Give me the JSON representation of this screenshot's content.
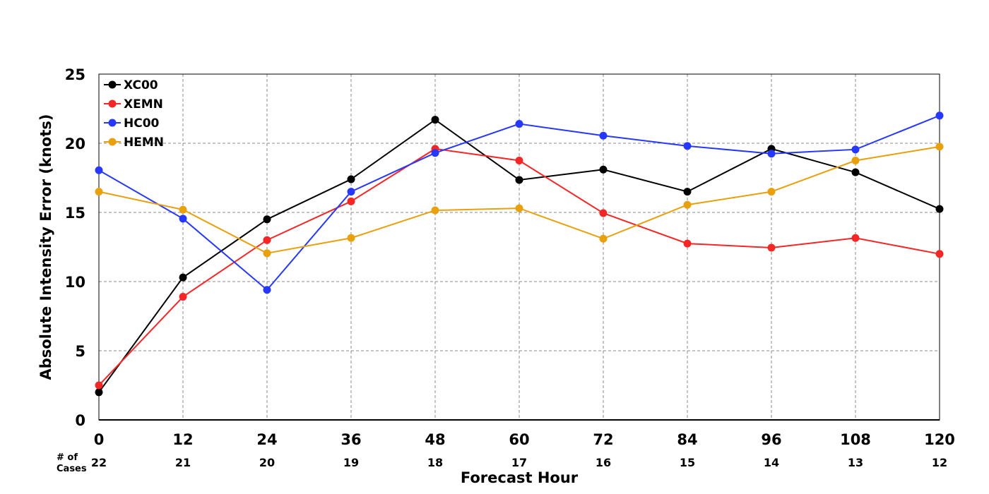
{
  "chart_data": {
    "type": "line",
    "title": "",
    "xlabel": "Forecast Hour",
    "ylabel": "Absolute Intensity Error (knots)",
    "x": [
      0,
      12,
      24,
      36,
      48,
      60,
      72,
      84,
      96,
      108,
      120
    ],
    "xlim": [
      0,
      120
    ],
    "ylim": [
      0,
      25
    ],
    "y_ticks": [
      0,
      5,
      10,
      15,
      20,
      25
    ],
    "grid": true,
    "legend_position": "top-left",
    "cases_caption": [
      "# of",
      "Cases"
    ],
    "cases": [
      22,
      21,
      20,
      19,
      18,
      17,
      16,
      15,
      14,
      13,
      12
    ],
    "series": [
      {
        "name": "XC00",
        "color": "#000000",
        "values": [
          2.0,
          10.3,
          14.5,
          17.4,
          21.7,
          17.35,
          18.1,
          16.5,
          19.6,
          17.9,
          15.25
        ]
      },
      {
        "name": "XEMN",
        "color": "#f52626",
        "values": [
          2.5,
          8.9,
          13.0,
          15.8,
          19.6,
          18.75,
          14.95,
          12.75,
          12.45,
          13.15,
          12.0
        ]
      },
      {
        "name": "HC00",
        "color": "#2638ff",
        "values": [
          18.05,
          14.55,
          9.4,
          16.5,
          19.3,
          21.4,
          20.55,
          19.8,
          19.25,
          19.55,
          22.0
        ]
      },
      {
        "name": "HEMN",
        "color": "#e8a00c",
        "values": [
          16.5,
          15.2,
          12.05,
          13.15,
          15.15,
          15.3,
          13.1,
          15.55,
          16.5,
          18.75,
          19.75
        ]
      }
    ]
  }
}
